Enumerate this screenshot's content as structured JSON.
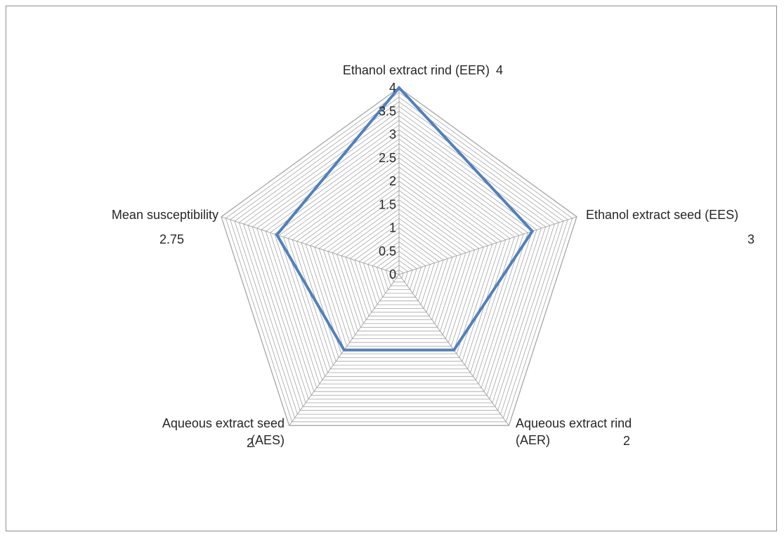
{
  "chart_data": {
    "type": "radar",
    "categories": [
      {
        "label_lines": [
          "Ethanol extract rind (EER)"
        ],
        "value_label": "4"
      },
      {
        "label_lines": [
          "Ethanol extract seed (EES)"
        ],
        "value_label": "3"
      },
      {
        "label_lines": [
          "Aqueous extract  rind",
          "(AER)"
        ],
        "value_label": "2"
      },
      {
        "label_lines": [
          "Aqueous extract seed",
          "(AES)"
        ],
        "value_label": "2"
      },
      {
        "label_lines": [
          "Mean susceptibility"
        ],
        "value_label": "2.75"
      }
    ],
    "values": [
      4,
      3,
      2,
      2,
      2.75
    ],
    "rlim": [
      0,
      4
    ],
    "ticks": [
      "0",
      "0.5",
      "1",
      "1.5",
      "2",
      "2.5",
      "3",
      "3.5",
      "4"
    ],
    "minor_grid_step": 0.1,
    "grid": true,
    "legend": "none"
  },
  "colors": {
    "series_line": "#4f81bd",
    "grid_line": "#a6a6a6",
    "spoke": "#a6a6a6",
    "text": "#262626"
  }
}
